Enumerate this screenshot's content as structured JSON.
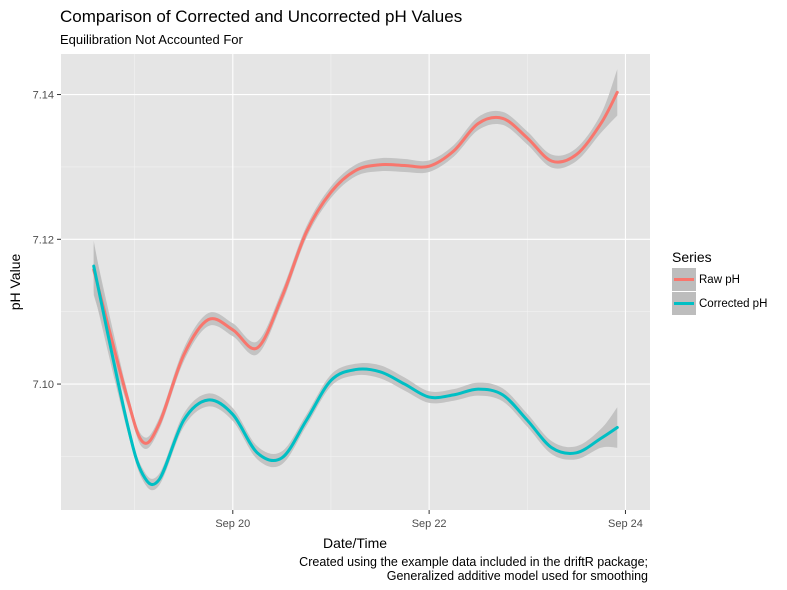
{
  "chart_data": {
    "type": "line",
    "title": "Comparison of Corrected and Uncorrected pH Values",
    "subtitle": "Equilibration Not Accounted For",
    "xlabel": "Date/Time",
    "ylabel": "pH Value",
    "caption_lines": [
      "Created using the example data included in the driftR package;",
      "Generalized additive model used for smoothing"
    ],
    "legend": {
      "title": "Series",
      "position": "right"
    },
    "grid": true,
    "background": "#e5e5e5",
    "xlim": [
      "2016-09-18 06:00",
      "2016-09-24 06:00"
    ],
    "x_ticks": [
      {
        "value": "2016-09-20",
        "label": "Sep 20"
      },
      {
        "value": "2016-09-22",
        "label": "Sep 22"
      },
      {
        "value": "2016-09-24",
        "label": "Sep 24"
      }
    ],
    "ylim": [
      7.0826,
      7.1456
    ],
    "y_ticks": [
      7.1,
      7.12,
      7.14
    ],
    "y_tick_labels": [
      "7.10",
      "7.12",
      "7.14"
    ],
    "series": [
      {
        "name": "Raw pH",
        "color": "#f8766d",
        "x": [
          "2016-09-18 14:00",
          "2016-09-18 22:00",
          "2016-09-19 02:00",
          "2016-09-19 06:00",
          "2016-09-19 12:00",
          "2016-09-19 18:00",
          "2016-09-20 00:00",
          "2016-09-20 06:00",
          "2016-09-20 12:00",
          "2016-09-20 18:00",
          "2016-09-21 00:00",
          "2016-09-21 06:00",
          "2016-09-21 12:00",
          "2016-09-21 18:00",
          "2016-09-22 00:00",
          "2016-09-22 06:00",
          "2016-09-22 12:00",
          "2016-09-22 18:00",
          "2016-09-23 00:00",
          "2016-09-23 06:00",
          "2016-09-23 12:00",
          "2016-09-23 18:00",
          "2016-09-23 22:00"
        ],
        "y": [
          7.1158,
          7.0985,
          7.092,
          7.0945,
          7.104,
          7.1089,
          7.1075,
          7.105,
          7.112,
          7.121,
          7.1265,
          7.1295,
          7.1303,
          7.1302,
          7.1301,
          7.1322,
          7.136,
          7.1367,
          7.134,
          7.1308,
          7.1317,
          7.136,
          7.1403
        ],
        "band_halfwidth": [
          0.0035,
          0.001,
          0.0008,
          0.0008,
          0.0009,
          0.0009,
          0.0009,
          0.0009,
          0.0009,
          0.0008,
          0.0008,
          0.0008,
          0.0009,
          0.0009,
          0.0008,
          0.0008,
          0.0009,
          0.0009,
          0.0009,
          0.0009,
          0.0009,
          0.0013,
          0.0032
        ]
      },
      {
        "name": "Corrected pH",
        "color": "#00bfc4",
        "x": [
          "2016-09-18 14:00",
          "2016-09-18 22:00",
          "2016-09-19 02:00",
          "2016-09-19 06:00",
          "2016-09-19 12:00",
          "2016-09-19 18:00",
          "2016-09-20 00:00",
          "2016-09-20 06:00",
          "2016-09-20 12:00",
          "2016-09-20 18:00",
          "2016-09-21 00:00",
          "2016-09-21 06:00",
          "2016-09-21 12:00",
          "2016-09-21 18:00",
          "2016-09-22 00:00",
          "2016-09-22 06:00",
          "2016-09-22 12:00",
          "2016-09-22 18:00",
          "2016-09-23 00:00",
          "2016-09-23 06:00",
          "2016-09-23 12:00",
          "2016-09-23 18:00",
          "2016-09-23 22:00"
        ],
        "y": [
          7.1163,
          7.095,
          7.0875,
          7.0868,
          7.095,
          7.0978,
          7.0958,
          7.0905,
          7.0898,
          7.095,
          7.1005,
          7.102,
          7.1017,
          7.1,
          7.0982,
          7.0985,
          7.0993,
          7.0985,
          7.095,
          7.0912,
          7.0905,
          7.0925,
          7.094
        ],
        "band_halfwidth": [
          0.0035,
          0.001,
          0.0008,
          0.0008,
          0.0009,
          0.0009,
          0.0009,
          0.0009,
          0.0009,
          0.0008,
          0.0008,
          0.0008,
          0.0009,
          0.0009,
          0.0008,
          0.0008,
          0.0009,
          0.0009,
          0.0009,
          0.0009,
          0.0009,
          0.0013,
          0.0028
        ]
      }
    ],
    "confidence_band_color": "#bdbdbd"
  }
}
